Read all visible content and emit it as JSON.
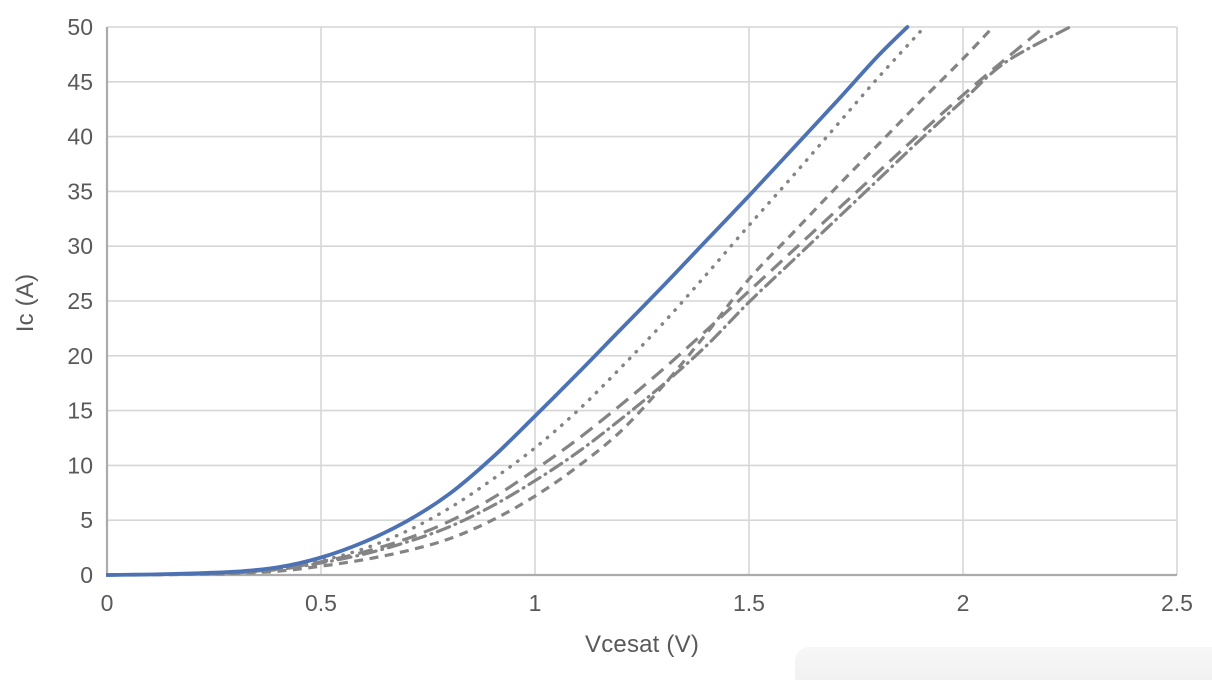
{
  "chart_data": {
    "type": "line",
    "title": "",
    "xlabel": "Vcesat (V)",
    "ylabel": "Ic (A)",
    "xlim": [
      0,
      2.5
    ],
    "ylim": [
      0,
      50
    ],
    "grid": true,
    "legend_position": "none",
    "x_ticks": [
      {
        "v": 0,
        "label": "0"
      },
      {
        "v": 0.5,
        "label": "0.5"
      },
      {
        "v": 1,
        "label": "1"
      },
      {
        "v": 1.5,
        "label": "1.5"
      },
      {
        "v": 2,
        "label": "2"
      },
      {
        "v": 2.5,
        "label": "2.5"
      }
    ],
    "y_ticks": [
      {
        "v": 0,
        "label": "0"
      },
      {
        "v": 5,
        "label": "5"
      },
      {
        "v": 10,
        "label": "10"
      },
      {
        "v": 15,
        "label": "15"
      },
      {
        "v": 20,
        "label": "20"
      },
      {
        "v": 25,
        "label": "25"
      },
      {
        "v": 30,
        "label": "30"
      },
      {
        "v": 35,
        "label": "35"
      },
      {
        "v": 40,
        "label": "40"
      },
      {
        "v": 45,
        "label": "45"
      },
      {
        "v": 50,
        "label": "50"
      }
    ],
    "colors": {
      "blue_series": "#4d72b4",
      "gray_series": "#848484",
      "gridline": "#d6d6d6",
      "axis_line": "#ababab",
      "tick_text": "#595959"
    },
    "series": [
      {
        "name": "curve-long-dash-gray",
        "style": "long-dash",
        "color": "#848484",
        "points": [
          [
            0,
            0
          ],
          [
            0.1,
            0.04
          ],
          [
            0.2,
            0.1
          ],
          [
            0.3,
            0.25
          ],
          [
            0.4,
            0.55
          ],
          [
            0.5,
            1.2
          ],
          [
            0.6,
            2.1
          ],
          [
            0.7,
            3.3
          ],
          [
            0.8,
            4.9
          ],
          [
            0.9,
            7.0
          ],
          [
            1.0,
            9.6
          ],
          [
            1.1,
            12.4
          ],
          [
            1.2,
            15.5
          ],
          [
            1.3,
            18.8
          ],
          [
            1.4,
            22.3
          ],
          [
            1.5,
            25.9
          ],
          [
            1.6,
            29.5
          ],
          [
            1.7,
            33.1
          ],
          [
            1.8,
            36.7
          ],
          [
            1.9,
            40.3
          ],
          [
            2.0,
            43.8
          ],
          [
            2.1,
            47.1
          ],
          [
            2.19,
            50
          ]
        ]
      },
      {
        "name": "curve-dash-dot-gray",
        "style": "dash-dot",
        "color": "#848484",
        "points": [
          [
            0,
            0
          ],
          [
            0.1,
            0.03
          ],
          [
            0.2,
            0.09
          ],
          [
            0.3,
            0.2
          ],
          [
            0.4,
            0.5
          ],
          [
            0.5,
            1.1
          ],
          [
            0.6,
            1.9
          ],
          [
            0.7,
            3.0
          ],
          [
            0.8,
            4.4
          ],
          [
            0.9,
            6.3
          ],
          [
            1.0,
            8.6
          ],
          [
            1.1,
            11.2
          ],
          [
            1.2,
            14.2
          ],
          [
            1.3,
            17.4
          ],
          [
            1.4,
            20.9
          ],
          [
            1.5,
            24.9
          ],
          [
            1.6,
            28.6
          ],
          [
            1.7,
            32.3
          ],
          [
            1.8,
            36.0
          ],
          [
            1.9,
            39.7
          ],
          [
            2.0,
            43.3
          ],
          [
            2.1,
            46.8
          ],
          [
            2.25,
            50
          ]
        ]
      },
      {
        "name": "curve-short-dash-gray",
        "style": "dash",
        "color": "#848484",
        "points": [
          [
            0,
            0
          ],
          [
            0.1,
            0.02
          ],
          [
            0.2,
            0.06
          ],
          [
            0.3,
            0.15
          ],
          [
            0.4,
            0.35
          ],
          [
            0.5,
            0.8
          ],
          [
            0.6,
            1.4
          ],
          [
            0.7,
            2.2
          ],
          [
            0.8,
            3.3
          ],
          [
            0.9,
            5.0
          ],
          [
            1.0,
            7.2
          ],
          [
            1.1,
            9.9
          ],
          [
            1.2,
            13.1
          ],
          [
            1.3,
            17.3
          ],
          [
            1.4,
            22.0
          ],
          [
            1.5,
            27.0
          ],
          [
            1.6,
            31.1
          ],
          [
            1.7,
            35.2
          ],
          [
            1.8,
            39.2
          ],
          [
            1.9,
            43.2
          ],
          [
            2.0,
            47.1
          ],
          [
            2.07,
            50
          ]
        ]
      },
      {
        "name": "curve-dotted-gray",
        "style": "dotted",
        "color": "#848484",
        "points": [
          [
            0,
            0
          ],
          [
            0.1,
            0.05
          ],
          [
            0.2,
            0.12
          ],
          [
            0.3,
            0.25
          ],
          [
            0.4,
            0.6
          ],
          [
            0.5,
            1.3
          ],
          [
            0.6,
            2.4
          ],
          [
            0.7,
            4.0
          ],
          [
            0.8,
            6.1
          ],
          [
            0.9,
            8.7
          ],
          [
            1.0,
            11.6
          ],
          [
            1.1,
            15.0
          ],
          [
            1.2,
            18.9
          ],
          [
            1.3,
            23.0
          ],
          [
            1.4,
            27.4
          ],
          [
            1.5,
            31.9
          ],
          [
            1.6,
            36.3
          ],
          [
            1.7,
            40.8
          ],
          [
            1.8,
            45.3
          ],
          [
            1.91,
            50
          ]
        ]
      },
      {
        "name": "curve-solid-blue",
        "style": "solid",
        "color": "#4d72b4",
        "points": [
          [
            0,
            0
          ],
          [
            0.1,
            0.05
          ],
          [
            0.2,
            0.15
          ],
          [
            0.3,
            0.3
          ],
          [
            0.4,
            0.7
          ],
          [
            0.5,
            1.6
          ],
          [
            0.6,
            3.0
          ],
          [
            0.7,
            4.9
          ],
          [
            0.8,
            7.4
          ],
          [
            0.9,
            10.7
          ],
          [
            1.0,
            14.5
          ],
          [
            1.1,
            18.4
          ],
          [
            1.2,
            22.4
          ],
          [
            1.3,
            26.4
          ],
          [
            1.4,
            30.5
          ],
          [
            1.5,
            34.6
          ],
          [
            1.6,
            38.8
          ],
          [
            1.7,
            43.0
          ],
          [
            1.8,
            47.3
          ],
          [
            1.87,
            50
          ]
        ]
      }
    ]
  }
}
